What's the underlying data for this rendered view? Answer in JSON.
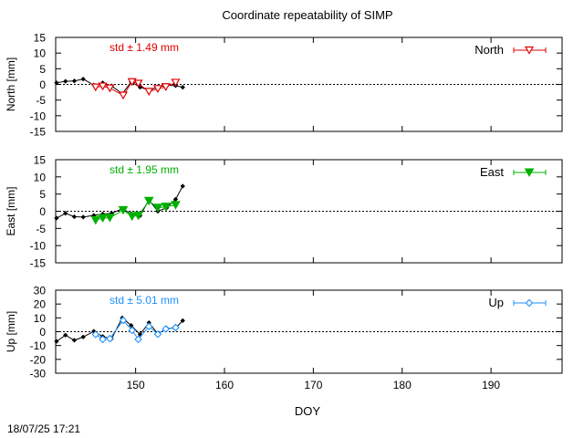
{
  "chart_title": "Coordinate repeatability of SIMP",
  "timestamp": "18/07/25 17:21",
  "xlabel": "DOY",
  "colors": {
    "north": "#e00000",
    "east": "#00b000",
    "up": "#1e90ff",
    "reference": "#000000"
  },
  "chart_data": [
    {
      "type": "line",
      "panel": "north",
      "title": "Coordinate repeatability of SIMP",
      "xlabel": "DOY",
      "ylabel": "North [mm]",
      "legend": "North",
      "legend_position": "top-right",
      "std_label": "std ± 1.49 mm",
      "xlim": [
        141,
        198
      ],
      "ylim": [
        -15,
        15
      ],
      "yticks": [
        15,
        10,
        5,
        0,
        -5,
        -10,
        -15
      ],
      "xticks": [
        150,
        160,
        170,
        180,
        190
      ],
      "zero_line": true,
      "series": [
        {
          "name": "North",
          "marker": "open-triangle-down",
          "color": "#e00000",
          "x": [
            145.5,
            146.3,
            147.1,
            148.6,
            149.6,
            150.3,
            151.5,
            152.5,
            153.4,
            154.5
          ],
          "y": [
            -0.9,
            -0.6,
            -1.2,
            -3.5,
            0.8,
            0.3,
            -2.3,
            -1.4,
            -0.8,
            0.6
          ]
        },
        {
          "marker": "dot",
          "color": "#000000",
          "x": [
            141.1,
            142.1,
            143.1,
            144.1,
            145.3,
            146.3,
            147.3,
            148.5,
            149.5,
            150.5,
            151.5,
            152.5,
            153.5,
            154.5,
            155.3
          ],
          "y": [
            0.5,
            1.0,
            1.1,
            1.7,
            -0.2,
            0.5,
            -0.5,
            -3.0,
            0.8,
            -0.9,
            -1.9,
            -0.8,
            -0.3,
            -0.4,
            -0.9
          ]
        }
      ]
    },
    {
      "type": "line",
      "panel": "east",
      "xlabel": "DOY",
      "ylabel": "East [mm]",
      "legend": "East",
      "legend_position": "top-right",
      "std_label": "std ± 1.95 mm",
      "xlim": [
        141,
        198
      ],
      "ylim": [
        -15,
        15
      ],
      "yticks": [
        15,
        10,
        5,
        0,
        -5,
        -10,
        -15
      ],
      "xticks": [
        150,
        160,
        170,
        180,
        190
      ],
      "zero_line": true,
      "series": [
        {
          "name": "East",
          "marker": "filled-triangle-down",
          "color": "#00b000",
          "x": [
            145.5,
            146.3,
            147.1,
            148.6,
            149.6,
            150.3,
            151.5,
            152.5,
            153.4,
            154.5
          ],
          "y": [
            -2.6,
            -2.0,
            -1.9,
            0.3,
            -1.5,
            -1.3,
            3.0,
            1.0,
            1.3,
            1.8
          ]
        },
        {
          "marker": "dot",
          "color": "#000000",
          "x": [
            141.1,
            142.1,
            143.1,
            144.1,
            145.3,
            146.3,
            147.3,
            148.5,
            149.5,
            150.5,
            151.5,
            152.5,
            153.5,
            154.5,
            155.3
          ],
          "y": [
            -2.0,
            -0.6,
            -1.6,
            -1.7,
            -1.2,
            -0.8,
            -0.6,
            0.7,
            -0.7,
            -1.3,
            3.3,
            0.0,
            1.0,
            3.5,
            7.3
          ]
        }
      ]
    },
    {
      "type": "line",
      "panel": "up",
      "xlabel": "DOY",
      "ylabel": "Up [mm]",
      "legend": "Up",
      "legend_position": "top-right",
      "std_label": "std ± 5.01 mm",
      "xlim": [
        141,
        198
      ],
      "ylim": [
        -30,
        30
      ],
      "yticks": [
        30,
        20,
        10,
        0,
        -10,
        -20,
        -30
      ],
      "xticks": [
        150,
        160,
        170,
        180,
        190
      ],
      "zero_line": true,
      "series": [
        {
          "name": "Up",
          "marker": "open-diamond",
          "color": "#1e90ff",
          "x": [
            145.5,
            146.3,
            147.1,
            148.6,
            149.6,
            150.3,
            151.5,
            152.5,
            153.4,
            154.5
          ],
          "y": [
            -2.0,
            -5.5,
            -5.0,
            8.2,
            1.0,
            -5.5,
            3.8,
            -1.8,
            2.0,
            3.0
          ]
        },
        {
          "marker": "dot",
          "color": "#000000",
          "x": [
            141.1,
            142.1,
            143.1,
            144.1,
            145.3,
            146.3,
            147.3,
            148.5,
            149.5,
            150.5,
            151.5,
            152.5,
            153.5,
            154.5,
            155.3
          ],
          "y": [
            -7.0,
            -2.5,
            -6.2,
            -3.8,
            0.3,
            -3.5,
            -5.0,
            10.0,
            4.5,
            -2.0,
            6.5,
            -1.5,
            2.5,
            2.5,
            8.0
          ]
        }
      ]
    }
  ]
}
